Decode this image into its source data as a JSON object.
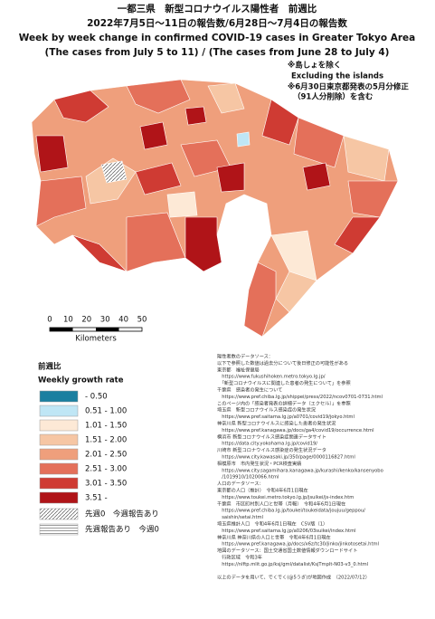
{
  "header": {
    "title_ja": "一都三県　新型コロナウイルス陽性者　前週比",
    "subtitle_ja": "2022年7月5日～11日の報告数/6月28日～7月4日の報告数",
    "title_en": "Week by week change in confirmed COVID-19 cases in Greater Tokyo Area",
    "subtitle_en": "(The cases from July 5 to 11) / (The cases from June 28 to July 4)"
  },
  "notes": [
    "※島しょを除く",
    "Excluding the islands",
    "※6月30日東京都発表の5月分修正",
    "（91人分削除）を含む"
  ],
  "scale_bar": {
    "ticks": [
      0,
      10,
      20,
      30,
      40,
      50
    ],
    "unit": "Kilometers"
  },
  "legend": {
    "title_ja": "前週比",
    "title_en": "Weekly growth rate",
    "items": [
      {
        "label": "- 0.50",
        "color": "#1a7fa0"
      },
      {
        "label": "0.51 - 1.00",
        "color": "#bfe6f5"
      },
      {
        "label": "1.01 - 1.50",
        "color": "#fde9d6"
      },
      {
        "label": "1.51 - 2.00",
        "color": "#f6c6a4"
      },
      {
        "label": "2.01 - 2.50",
        "color": "#ef9f7c"
      },
      {
        "label": "2.51 - 3.00",
        "color": "#e4705a"
      },
      {
        "label": "3.01 - 3.50",
        "color": "#cf3b33"
      },
      {
        "label": "3.51 -",
        "color": "#b01418"
      }
    ],
    "special": [
      "先週0　今週報告あり",
      "先週報告あり　今週0"
    ]
  },
  "sources": [
    "陽性者数のデータソース：",
    "以下で参照した数値は過去分について後日修正の可能性がある",
    "東京都　福祉保健局",
    "　https://www.fukushihoken.metro.tokyo.lg.jp/",
    "　「新型コロナウイルスに関連した患者の発生について」を参照",
    "千葉県　感染者の発生について",
    "　https://www.pref.chiba.lg.jp/shippei/press/2022/ncov0701-0731.html",
    "このページ内の「感染者発表の詳細データ（エクセル）」を参照",
    "埼玉県　新型コロナウイルス感染症の発生状況",
    "　https://www.pref.saitama.lg.jp/a0701/covid19/jokyo.html",
    "神奈川県 新型コロナウイルスに感染した患者の発生状況",
    "　https://www.pref.kanagawa.jp/docs/ga4/covid19/occurrence.html",
    "横浜市 新型コロナウイルス感染症関連データサイト",
    "　https://data.city.yokohama.lg.jp/covid19/",
    "川崎市 新型コロナウイルス感染症の発生状況データ",
    "　https://www.city.kawasaki.jp/350/page/0000116827.html",
    "相模原市　市内発生状況・PCR検査実績",
    "　https://www.city.sagamihara.kanagawa.jp/kurashi/kenko/kansenyobo",
    "　/1019910/1020066.html",
    "人口のデータソース：",
    "東京都の人口（推計）　令和4年6月1日現在",
    "　https://www.toukei.metro.tokyo.lg.jp/jsuikei/js-index.htm",
    "千葉県　市区町村別人口と世帯（月報）　令和4年6月1日現在",
    "　https://www.pref.chiba.lg.jp/toukei/toukeidata/joujuu/geppou/",
    "　saishin/setai.html",
    "埼玉県推計人口　令和4年6月1日現在　CSV版（1）",
    "　https://www.pref.saitama.lg.jp/a0206/03suikei/index.html",
    "神奈川県 神奈川県の人口と世帯　令和4年6月1日現在",
    "　https://www.pref.kanagawa.jp/docs/x6z/tc30/jinko/jinkotosetai.html",
    "地図のデータソース：国土交通省国土数値情報ダウンロードサイト",
    "　行政区域　令和3年",
    "　https://nlftp.mlit.go.jp/ksj/gml/datalist/KsjTmplt-N03-v3_0.html",
    "",
    "以上のデータを用いて、でくでく(@5うぎ)が地図作成　（2022/07/12）"
  ]
}
